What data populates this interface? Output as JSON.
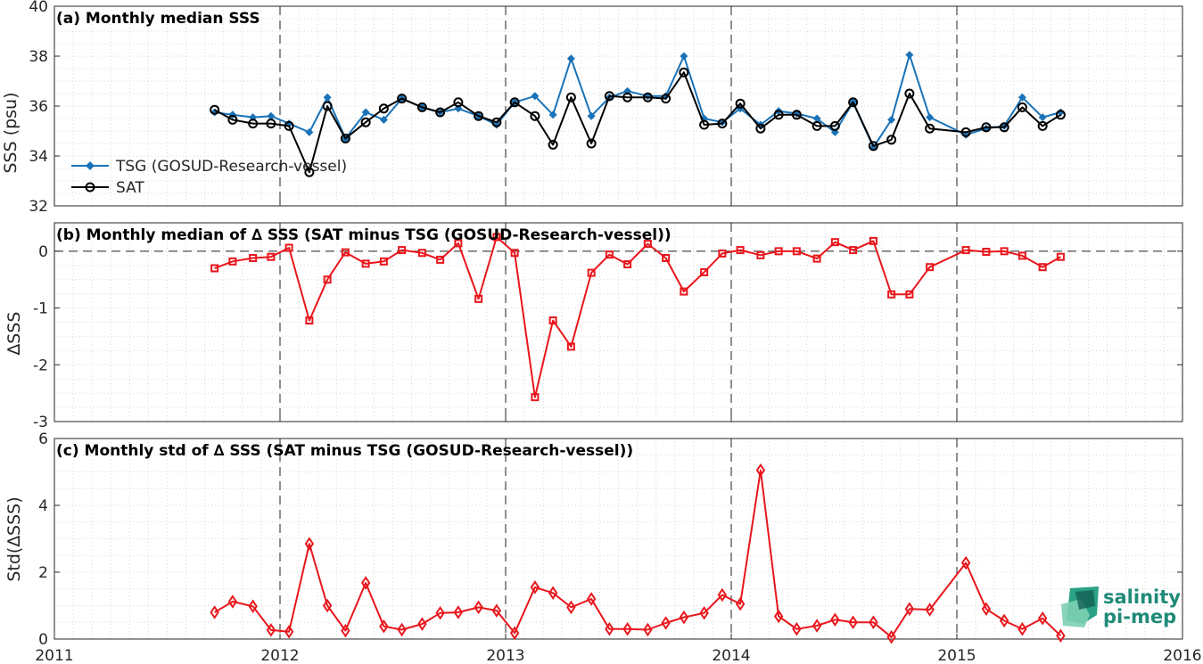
{
  "logo": {
    "line1": "salinity",
    "line2": "pi-mep"
  },
  "colors": {
    "tsg": "#1a73b8",
    "sat": "#000000",
    "delta": "#e8161c",
    "grid": "#d9d9d9",
    "axis": "#262626"
  },
  "chart_data": [
    {
      "type": "line",
      "title": "(a) Monthly median SSS",
      "xlabel": "",
      "ylabel": "SSS (psu)",
      "xlim": [
        2011,
        2016
      ],
      "ylim": [
        32,
        40
      ],
      "yticks": [
        32,
        34,
        36,
        38,
        40
      ],
      "legend_position": "bottom-left",
      "x": [
        2011.71,
        2011.79,
        2011.88,
        2011.96,
        2012.04,
        2012.13,
        2012.21,
        2012.29,
        2012.38,
        2012.46,
        2012.54,
        2012.63,
        2012.71,
        2012.79,
        2012.88,
        2012.96,
        2013.04,
        2013.13,
        2013.21,
        2013.29,
        2013.38,
        2013.46,
        2013.54,
        2013.63,
        2013.71,
        2013.79,
        2013.88,
        2013.96,
        2014.04,
        2014.13,
        2014.21,
        2014.29,
        2014.38,
        2014.46,
        2014.54,
        2014.63,
        2014.71,
        2014.79,
        2014.88,
        2015.04,
        2015.13,
        2015.21,
        2015.29,
        2015.38,
        2015.46
      ],
      "series": [
        {
          "name": "TSG (GOSUD-Research-vessel)",
          "marker": "diamond",
          "color": "#1a73b8",
          "values": [
            35.75,
            35.65,
            35.55,
            35.6,
            35.3,
            34.95,
            36.35,
            34.7,
            35.75,
            35.45,
            36.3,
            35.95,
            35.75,
            35.9,
            35.6,
            35.25,
            36.15,
            36.4,
            35.65,
            37.9,
            35.6,
            36.35,
            36.6,
            36.4,
            36.4,
            38.0,
            35.5,
            35.35,
            35.9,
            35.25,
            35.8,
            35.7,
            35.5,
            34.95,
            36.15,
            34.35,
            35.45,
            38.05,
            35.55,
            34.85,
            35.1,
            35.2,
            36.35,
            35.55,
            35.75
          ]
        },
        {
          "name": "SAT",
          "marker": "circle",
          "color": "#000000",
          "values": [
            35.85,
            35.45,
            35.3,
            35.3,
            35.2,
            33.35,
            36.0,
            34.7,
            35.35,
            35.9,
            36.3,
            35.95,
            35.75,
            36.15,
            35.6,
            35.35,
            36.15,
            35.6,
            34.45,
            36.35,
            34.5,
            36.4,
            36.35,
            36.35,
            36.3,
            37.35,
            35.25,
            35.3,
            36.1,
            35.1,
            35.65,
            35.65,
            35.2,
            35.2,
            36.15,
            34.4,
            34.65,
            36.5,
            35.1,
            34.95,
            35.15,
            35.15,
            35.95,
            35.2,
            35.65
          ]
        }
      ]
    },
    {
      "type": "line",
      "title": "(b) Monthly median of ∆ SSS (SAT minus TSG (GOSUD-Research-vessel))",
      "xlabel": "",
      "ylabel": "∆SSS",
      "xlim": [
        2011,
        2016
      ],
      "ylim": [
        -3,
        0.5
      ],
      "yticks": [
        -3,
        -2,
        -1,
        0
      ],
      "zero_line": true,
      "x": [
        2011.71,
        2011.79,
        2011.88,
        2011.96,
        2012.04,
        2012.13,
        2012.21,
        2012.29,
        2012.38,
        2012.46,
        2012.54,
        2012.63,
        2012.71,
        2012.79,
        2012.88,
        2012.96,
        2013.04,
        2013.13,
        2013.21,
        2013.29,
        2013.38,
        2013.46,
        2013.54,
        2013.63,
        2013.71,
        2013.79,
        2013.88,
        2013.96,
        2014.04,
        2014.13,
        2014.21,
        2014.29,
        2014.38,
        2014.46,
        2014.54,
        2014.63,
        2014.71,
        2014.79,
        2014.88,
        2015.04,
        2015.13,
        2015.21,
        2015.29,
        2015.38,
        2015.46
      ],
      "series": [
        {
          "name": "",
          "marker": "square",
          "color": "#e8161c",
          "values": [
            -0.3,
            -0.18,
            -0.12,
            -0.1,
            0.06,
            -1.22,
            -0.5,
            -0.02,
            -0.22,
            -0.18,
            0.02,
            -0.03,
            -0.15,
            0.14,
            -0.84,
            0.25,
            -0.03,
            -2.57,
            -1.22,
            -1.68,
            -0.38,
            -0.06,
            -0.23,
            0.13,
            -0.12,
            -0.71,
            -0.37,
            -0.04,
            0.02,
            -0.07,
            0.0,
            0.0,
            -0.13,
            0.16,
            0.02,
            0.18,
            -0.76,
            -0.76,
            -0.28,
            0.02,
            -0.01,
            0.0,
            -0.08,
            -0.28,
            -0.1
          ]
        }
      ]
    },
    {
      "type": "line",
      "title": "(c) Monthly std of ∆ SSS (SAT minus TSG (GOSUD-Research-vessel))",
      "xlabel": "",
      "ylabel": "Std(∆SSS)",
      "xlim": [
        2011,
        2016
      ],
      "ylim": [
        0,
        6
      ],
      "yticks": [
        0,
        2,
        4,
        6
      ],
      "xticks": [
        2011,
        2012,
        2013,
        2014,
        2015,
        2016
      ],
      "x": [
        2011.71,
        2011.79,
        2011.88,
        2011.96,
        2012.04,
        2012.13,
        2012.21,
        2012.29,
        2012.38,
        2012.46,
        2012.54,
        2012.63,
        2012.71,
        2012.79,
        2012.88,
        2012.96,
        2013.04,
        2013.13,
        2013.21,
        2013.29,
        2013.38,
        2013.46,
        2013.54,
        2013.63,
        2013.71,
        2013.79,
        2013.88,
        2013.96,
        2014.04,
        2014.13,
        2014.21,
        2014.29,
        2014.38,
        2014.46,
        2014.54,
        2014.63,
        2014.71,
        2014.79,
        2014.88,
        2015.04,
        2015.13,
        2015.21,
        2015.29,
        2015.38,
        2015.46
      ],
      "series": [
        {
          "name": "",
          "marker": "diamond",
          "color": "#e8161c",
          "values": [
            0.8,
            1.12,
            0.98,
            0.27,
            0.22,
            2.85,
            1.0,
            0.25,
            1.68,
            0.38,
            0.28,
            0.45,
            0.78,
            0.8,
            0.95,
            0.85,
            0.18,
            1.55,
            1.38,
            0.95,
            1.2,
            0.3,
            0.3,
            0.28,
            0.48,
            0.65,
            0.78,
            1.32,
            1.05,
            5.05,
            0.68,
            0.3,
            0.4,
            0.58,
            0.5,
            0.5,
            0.06,
            0.9,
            0.88,
            2.28,
            0.9,
            0.55,
            0.3,
            0.62,
            0.1
          ]
        }
      ]
    }
  ]
}
